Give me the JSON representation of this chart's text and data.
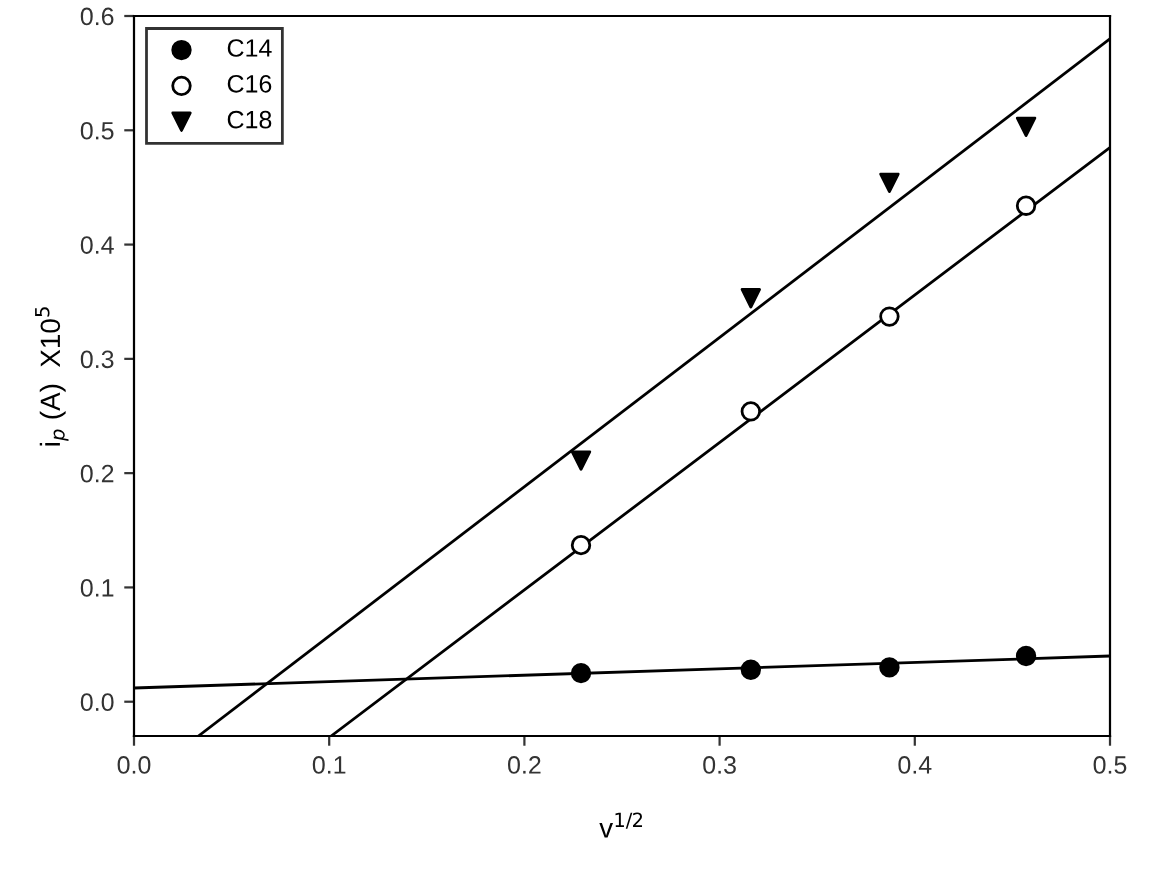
{
  "chart_data": {
    "type": "scatter",
    "xlabel": "v$^{1/2}$",
    "ylabel": "i$_{p}$ (A)  X10$^{5}$",
    "xlim": [
      0.0,
      0.5
    ],
    "xticks": [
      {
        "value": 0,
        "label": "0.0"
      },
      0.1,
      0.2,
      0.3,
      0.4,
      0.5
    ],
    "ylim": [
      -0.03,
      0.6
    ],
    "yticks": [
      {
        "value": 0,
        "label": "0.0"
      },
      0.1,
      0.2,
      0.3,
      0.4,
      0.5,
      0.6
    ],
    "grid": false,
    "legend": "top left",
    "series": [
      {
        "name": "C14",
        "marker": "circle",
        "color": "#000000",
        "x": [
          0.229,
          0.316,
          0.387,
          0.457
        ],
        "values": [
          0.025,
          0.028,
          0.03,
          0.04
        ]
      },
      {
        "name": "C16",
        "marker": "circle",
        "color": "#ffffff",
        "x": [
          0.229,
          0.316,
          0.387,
          0.457
        ],
        "values": [
          0.137,
          0.254,
          0.337,
          0.434
        ]
      },
      {
        "name": "C18",
        "marker": "triangle",
        "color": "#000000",
        "x": [
          0.229,
          0.316,
          0.387,
          0.457
        ],
        "values": [
          0.211,
          0.353,
          0.454,
          0.503
        ]
      },
      {
        "type": "line",
        "marker": "none",
        "color": "#000000",
        "x": [
          0.0,
          0.5
        ],
        "values": [
          0.012,
          0.04
        ]
      },
      {
        "type": "line",
        "marker": "none",
        "color": "#000000",
        "x": [
          0.101,
          0.5
        ],
        "values": [
          -0.03,
          0.485
        ]
      },
      {
        "type": "line",
        "marker": "none",
        "color": "#000000",
        "x": [
          0.033,
          0.5
        ],
        "values": [
          -0.03,
          0.58
        ]
      }
    ]
  }
}
